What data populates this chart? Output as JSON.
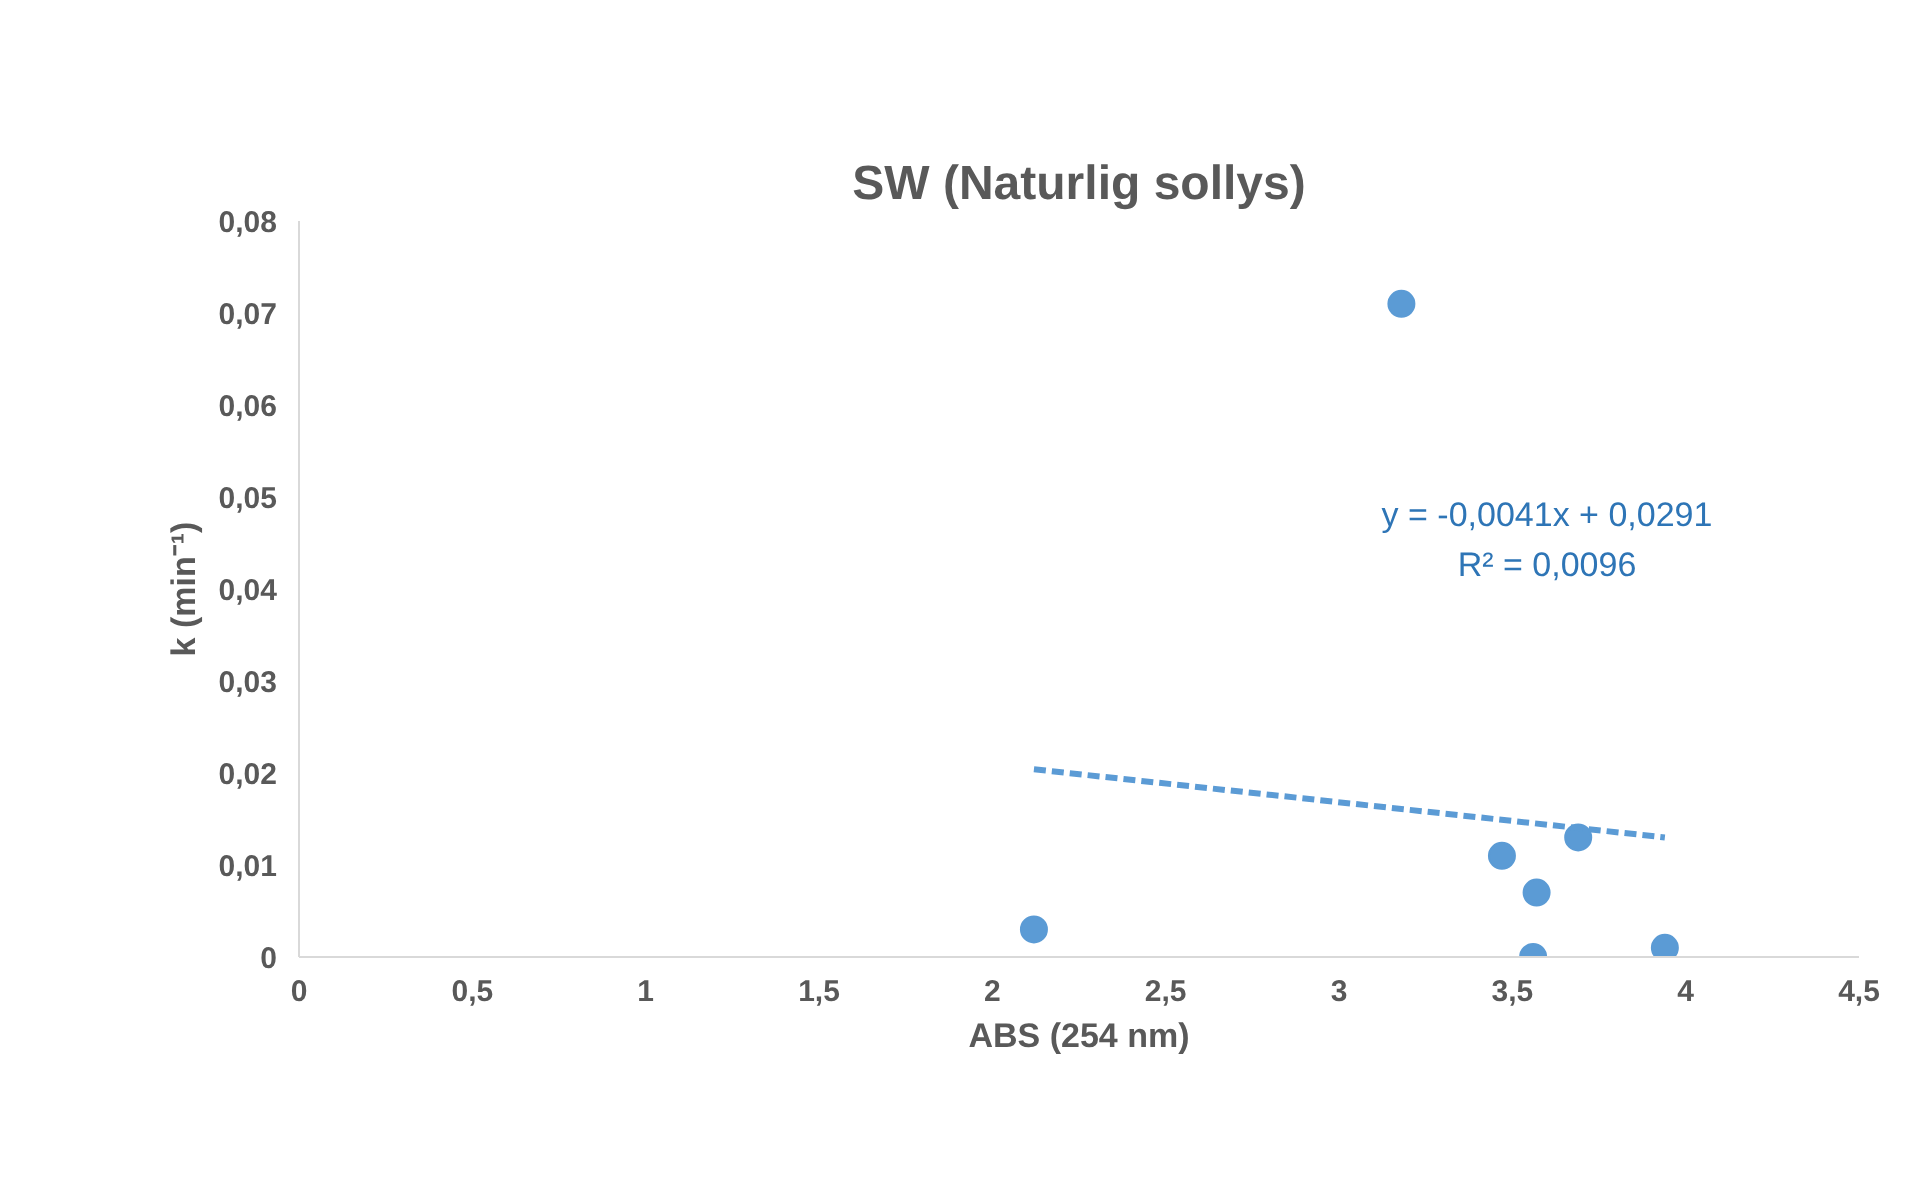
{
  "chart_data": {
    "type": "scatter",
    "title": "SW (Naturlig sollys)",
    "xlabel": "ABS (254 nm)",
    "ylabel": "k (min⁻¹)",
    "xlim": [
      0,
      4.5
    ],
    "ylim": [
      0,
      0.08
    ],
    "xticks": [
      0,
      {
        "value": 0.5,
        "label": "0,5"
      },
      1,
      {
        "value": 1.5,
        "label": "1,5"
      },
      2,
      {
        "value": 2.5,
        "label": "2,5"
      },
      3,
      {
        "value": 3.5,
        "label": "3,5"
      },
      4,
      {
        "value": 4.5,
        "label": "4,5"
      }
    ],
    "yticks": [
      0,
      {
        "value": 0.01,
        "label": "0,01"
      },
      {
        "value": 0.02,
        "label": "0,02"
      },
      {
        "value": 0.03,
        "label": "0,03"
      },
      {
        "value": 0.04,
        "label": "0,04"
      },
      {
        "value": 0.05,
        "label": "0,05"
      },
      {
        "value": 0.06,
        "label": "0,06"
      },
      {
        "value": 0.07,
        "label": "0,07"
      },
      {
        "value": 0.08,
        "label": "0,08"
      }
    ],
    "grid": false,
    "series": [
      {
        "marker": "circle",
        "color": "#5b9bd5",
        "x": [
          2.12,
          3.18,
          3.47,
          3.57,
          3.56,
          3.69,
          3.94
        ],
        "values": [
          0.003,
          0.071,
          0.011,
          0.007,
          0.0,
          0.013,
          0.001
        ]
      },
      {
        "type": "line",
        "line_style": "dashed",
        "color": "#5b9bd5",
        "x": [
          2.12,
          3.94
        ],
        "values": [
          0.0204,
          0.013
        ]
      }
    ],
    "annotations": [
      "y = -0,0041x + 0,0291",
      "R² = 0,0096"
    ]
  }
}
